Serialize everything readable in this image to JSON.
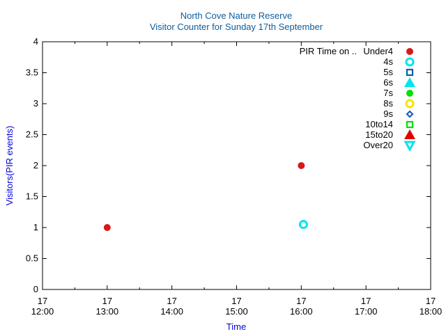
{
  "chart_data": {
    "type": "scatter",
    "title": "North Cove Nature Reserve",
    "subtitle": "Visitor Counter for Sunday 17th September",
    "xlabel": "Time",
    "ylabel": "Visitors(PIR events)",
    "xlim": [
      "12:00",
      "18:00"
    ],
    "ylim": [
      0,
      4
    ],
    "x_ticks": [
      {
        "day": "17",
        "time": "12:00"
      },
      {
        "day": "17",
        "time": "13:00"
      },
      {
        "day": "17",
        "time": "14:00"
      },
      {
        "day": "17",
        "time": "15:00"
      },
      {
        "day": "17",
        "time": "16:00"
      },
      {
        "day": "17",
        "time": "17:00"
      },
      {
        "day": "17",
        "time": "18:00"
      }
    ],
    "y_ticks": [
      "0",
      "0.5",
      "1",
      "1.5",
      "2",
      "2.5",
      "3",
      "3.5",
      "4"
    ],
    "grid": false,
    "legend_title": "PIR Time on ..",
    "legend_position": "top-right",
    "series": [
      {
        "name": "Under4",
        "color": "#d7191c",
        "marker": "filled-circle",
        "points": [
          {
            "x": "13:00",
            "y": 1
          },
          {
            "x": "16:00",
            "y": 2
          }
        ]
      },
      {
        "name": "4s",
        "color": "#00e5ee",
        "marker": "open-circle",
        "points": [
          {
            "x": "16:02",
            "y": 1.05
          }
        ]
      },
      {
        "name": "5s",
        "color": "#0060ad",
        "marker": "open-square",
        "points": []
      },
      {
        "name": "6s",
        "color": "#00e5ee",
        "marker": "filled-triangle-up",
        "points": []
      },
      {
        "name": "7s",
        "color": "#00e000",
        "marker": "filled-circle",
        "points": []
      },
      {
        "name": "8s",
        "color": "#f5e400",
        "marker": "open-circle",
        "points": []
      },
      {
        "name": "9s",
        "color": "#1f5fbf",
        "marker": "open-diamond",
        "points": []
      },
      {
        "name": "10to14",
        "color": "#00e000",
        "marker": "open-square",
        "points": []
      },
      {
        "name": "15to20",
        "color": "#e00000",
        "marker": "filled-triangle-up",
        "points": []
      },
      {
        "name": "Over20",
        "color": "#00e5ee",
        "marker": "open-triangle-down",
        "points": []
      }
    ]
  },
  "colors": {
    "title": "#0b5d9e",
    "axis_label": "#0000dd",
    "axis": "#000000"
  }
}
